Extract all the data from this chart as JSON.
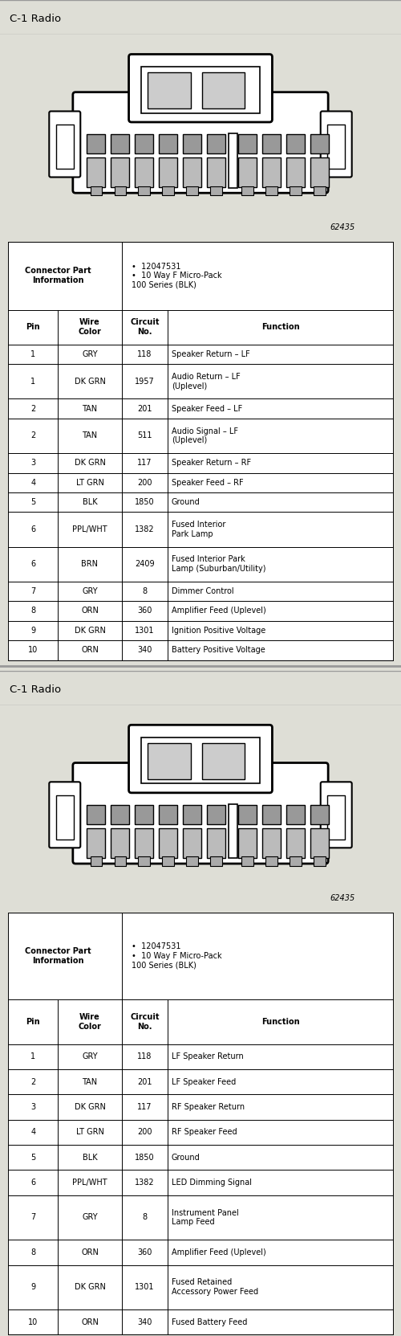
{
  "title": "C-1 Radio",
  "bg_color": "#deded6",
  "diagram_bg": "#ffffff",
  "connector_info_label": "Connector Part\nInformation",
  "connector_info_bullets": [
    "12047531",
    "10 Way F Micro-Pack\n100 Series (BLK)"
  ],
  "diagram_number": "62435",
  "table1_headers": [
    "Pin",
    "Wire\nColor",
    "Circuit\nNo.",
    "Function"
  ],
  "table1_rows": [
    [
      "1",
      "GRY",
      "118",
      "Speaker Return – LF"
    ],
    [
      "1",
      "DK GRN",
      "1957",
      "Audio Return – LF\n(Uplevel)"
    ],
    [
      "2",
      "TAN",
      "201",
      "Speaker Feed – LF"
    ],
    [
      "2",
      "TAN",
      "511",
      "Audio Signal – LF\n(Uplevel)"
    ],
    [
      "3",
      "DK GRN",
      "117",
      "Speaker Return – RF"
    ],
    [
      "4",
      "LT GRN",
      "200",
      "Speaker Feed – RF"
    ],
    [
      "5",
      "BLK",
      "1850",
      "Ground"
    ],
    [
      "6",
      "PPL/WHT",
      "1382",
      "Fused Interior\nPark Lamp"
    ],
    [
      "6",
      "BRN",
      "2409",
      "Fused Interior Park\nLamp (Suburban/Utility)"
    ],
    [
      "7",
      "GRY",
      "8",
      "Dimmer Control"
    ],
    [
      "8",
      "ORN",
      "360",
      "Amplifier Feed (Uplevel)"
    ],
    [
      "9",
      "DK GRN",
      "1301",
      "Ignition Positive Voltage"
    ],
    [
      "10",
      "ORN",
      "340",
      "Battery Positive Voltage"
    ]
  ],
  "table2_headers": [
    "Pin",
    "Wire\nColor",
    "Circuit\nNo.",
    "Function"
  ],
  "table2_rows": [
    [
      "1",
      "GRY",
      "118",
      "LF Speaker Return"
    ],
    [
      "2",
      "TAN",
      "201",
      "LF Speaker Feed"
    ],
    [
      "3",
      "DK GRN",
      "117",
      "RF Speaker Return"
    ],
    [
      "4",
      "LT GRN",
      "200",
      "RF Speaker Feed"
    ],
    [
      "5",
      "BLK",
      "1850",
      "Ground"
    ],
    [
      "6",
      "PPL/WHT",
      "1382",
      "LED Dimming Signal"
    ],
    [
      "7",
      "GRY",
      "8",
      "Instrument Panel\nLamp Feed"
    ],
    [
      "8",
      "ORN",
      "360",
      "Amplifier Feed (Uplevel)"
    ],
    [
      "9",
      "DK GRN",
      "1301",
      "Fused Retained\nAccessory Power Feed"
    ],
    [
      "10",
      "ORN",
      "340",
      "Fused Battery Feed"
    ]
  ]
}
